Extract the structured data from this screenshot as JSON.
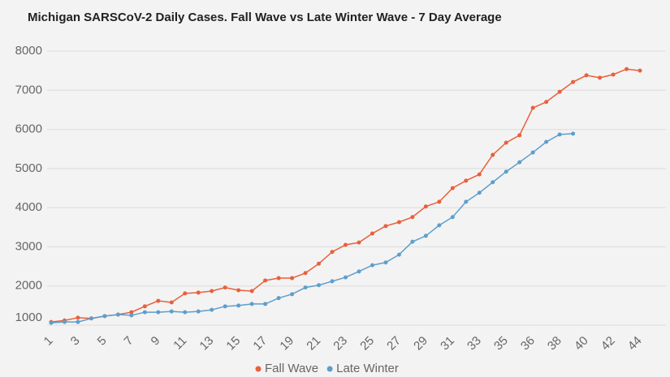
{
  "chart_data": {
    "type": "line",
    "title": "Michigan SARSCoV-2 Daily Cases. Fall Wave vs Late Winter Wave - 7 Day Average",
    "categories": [
      "1",
      null,
      "3",
      null,
      "5",
      null,
      "7",
      null,
      "9",
      null,
      "11",
      null,
      "13",
      null,
      "15",
      null,
      "17",
      null,
      "19",
      null,
      "21",
      null,
      "23",
      null,
      "25",
      null,
      "27",
      null,
      "29",
      null,
      "31",
      null,
      "33",
      null,
      "35",
      null,
      "36",
      null,
      "38",
      null,
      "40",
      null,
      "42",
      null,
      "44"
    ],
    "series": [
      {
        "name": "Fall Wave",
        "color": "#e8603c",
        "values": [
          1080,
          1120,
          1190,
          1170,
          1230,
          1270,
          1330,
          1480,
          1620,
          1580,
          1810,
          1830,
          1870,
          1960,
          1890,
          1870,
          2140,
          2200,
          2200,
          2330,
          2570,
          2870,
          3050,
          3110,
          3340,
          3530,
          3630,
          3760,
          4030,
          4150,
          4500,
          4690,
          4850,
          5350,
          5660,
          5850,
          6550,
          6700,
          6960,
          7210,
          7380,
          7320,
          7400,
          7540,
          7500
        ]
      },
      {
        "name": "Late Winter",
        "color": "#5e9ecb",
        "values": [
          1060,
          1080,
          1080,
          1170,
          1230,
          1270,
          1250,
          1330,
          1330,
          1350,
          1330,
          1350,
          1390,
          1480,
          1500,
          1540,
          1540,
          1690,
          1790,
          1960,
          2020,
          2120,
          2220,
          2370,
          2530,
          2600,
          2800,
          3130,
          3280,
          3550,
          3760,
          4150,
          4380,
          4650,
          4920,
          5160,
          5410,
          5680,
          5870,
          5890,
          null,
          null,
          null,
          null,
          null
        ]
      }
    ],
    "ylim": [
      1000,
      8000
    ],
    "yticks": [
      1000,
      2000,
      3000,
      4000,
      5000,
      6000,
      7000,
      8000
    ],
    "grid": true
  }
}
